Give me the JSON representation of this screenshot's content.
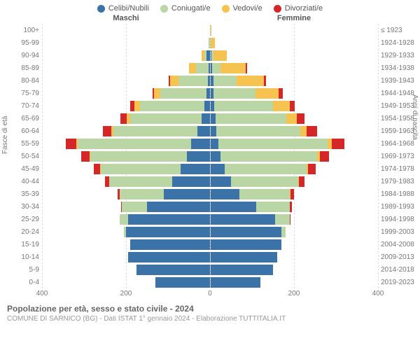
{
  "legend": [
    {
      "label": "Celibi/Nubili",
      "color": "#3b72a7"
    },
    {
      "label": "Coniugati/e",
      "color": "#bad6a4"
    },
    {
      "label": "Vedovi/e",
      "color": "#f6c350"
    },
    {
      "label": "Divorziati/e",
      "color": "#d62728"
    }
  ],
  "gender_labels": {
    "male": "Maschi",
    "female": "Femmine"
  },
  "axis_titles": {
    "left": "Fasce di età",
    "right": "Anni di nascita"
  },
  "x_axis": {
    "max": 400,
    "ticks": [
      400,
      200,
      0,
      200,
      400
    ]
  },
  "colors": {
    "celibi": "#3b72a7",
    "coniugati": "#bad6a4",
    "vedovi": "#f6c350",
    "divorziati": "#d62728",
    "grid": "#dddddd",
    "center": "#bbbbbb"
  },
  "rows": [
    {
      "age": "100+",
      "birth": "≤ 1923",
      "m": {
        "c": 0,
        "co": 0,
        "v": 0,
        "d": 0
      },
      "f": {
        "c": 0,
        "co": 0,
        "v": 2,
        "d": 0
      }
    },
    {
      "age": "95-99",
      "birth": "1924-1928",
      "m": {
        "c": 0,
        "co": 2,
        "v": 1,
        "d": 0
      },
      "f": {
        "c": 1,
        "co": 0,
        "v": 10,
        "d": 0
      }
    },
    {
      "age": "90-94",
      "birth": "1929-1933",
      "m": {
        "c": 7,
        "co": 6,
        "v": 7,
        "d": 0
      },
      "f": {
        "c": 3,
        "co": 4,
        "v": 32,
        "d": 0
      }
    },
    {
      "age": "85-89",
      "birth": "1934-1938",
      "m": {
        "c": 3,
        "co": 30,
        "v": 17,
        "d": 0
      },
      "f": {
        "c": 5,
        "co": 20,
        "v": 60,
        "d": 2
      }
    },
    {
      "age": "80-84",
      "birth": "1939-1943",
      "m": {
        "c": 5,
        "co": 70,
        "v": 20,
        "d": 3
      },
      "f": {
        "c": 7,
        "co": 55,
        "v": 65,
        "d": 5
      }
    },
    {
      "age": "75-79",
      "birth": "1944-1948",
      "m": {
        "c": 7,
        "co": 110,
        "v": 15,
        "d": 5
      },
      "f": {
        "c": 8,
        "co": 100,
        "v": 55,
        "d": 10
      }
    },
    {
      "age": "70-74",
      "birth": "1949-1953",
      "m": {
        "c": 12,
        "co": 155,
        "v": 12,
        "d": 10
      },
      "f": {
        "c": 10,
        "co": 140,
        "v": 40,
        "d": 12
      }
    },
    {
      "age": "65-69",
      "birth": "1954-1958",
      "m": {
        "c": 20,
        "co": 170,
        "v": 8,
        "d": 15
      },
      "f": {
        "c": 12,
        "co": 170,
        "v": 25,
        "d": 18
      }
    },
    {
      "age": "60-64",
      "birth": "1959-1963",
      "m": {
        "c": 30,
        "co": 200,
        "v": 5,
        "d": 20
      },
      "f": {
        "c": 15,
        "co": 200,
        "v": 15,
        "d": 25
      }
    },
    {
      "age": "55-59",
      "birth": "1964-1968",
      "m": {
        "c": 45,
        "co": 270,
        "v": 3,
        "d": 25
      },
      "f": {
        "c": 20,
        "co": 260,
        "v": 10,
        "d": 30
      }
    },
    {
      "age": "50-54",
      "birth": "1969-1973",
      "m": {
        "c": 55,
        "co": 230,
        "v": 2,
        "d": 20
      },
      "f": {
        "c": 25,
        "co": 230,
        "v": 6,
        "d": 22
      }
    },
    {
      "age": "45-49",
      "birth": "1974-1978",
      "m": {
        "c": 70,
        "co": 190,
        "v": 1,
        "d": 15
      },
      "f": {
        "c": 35,
        "co": 195,
        "v": 3,
        "d": 18
      }
    },
    {
      "age": "40-44",
      "birth": "1979-1983",
      "m": {
        "c": 90,
        "co": 150,
        "v": 0,
        "d": 10
      },
      "f": {
        "c": 50,
        "co": 160,
        "v": 2,
        "d": 12
      }
    },
    {
      "age": "35-39",
      "birth": "1984-1988",
      "m": {
        "c": 110,
        "co": 105,
        "v": 0,
        "d": 5
      },
      "f": {
        "c": 70,
        "co": 120,
        "v": 1,
        "d": 8
      }
    },
    {
      "age": "30-34",
      "birth": "1989-1993",
      "m": {
        "c": 150,
        "co": 60,
        "v": 0,
        "d": 2
      },
      "f": {
        "c": 110,
        "co": 80,
        "v": 0,
        "d": 5
      }
    },
    {
      "age": "25-29",
      "birth": "1994-1998",
      "m": {
        "c": 195,
        "co": 20,
        "v": 0,
        "d": 0
      },
      "f": {
        "c": 155,
        "co": 35,
        "v": 0,
        "d": 2
      }
    },
    {
      "age": "20-24",
      "birth": "1999-2003",
      "m": {
        "c": 200,
        "co": 5,
        "v": 0,
        "d": 0
      },
      "f": {
        "c": 170,
        "co": 10,
        "v": 0,
        "d": 0
      }
    },
    {
      "age": "15-19",
      "birth": "2004-2008",
      "m": {
        "c": 190,
        "co": 0,
        "v": 0,
        "d": 0
      },
      "f": {
        "c": 170,
        "co": 0,
        "v": 0,
        "d": 0
      }
    },
    {
      "age": "10-14",
      "birth": "2009-2013",
      "m": {
        "c": 195,
        "co": 0,
        "v": 0,
        "d": 0
      },
      "f": {
        "c": 160,
        "co": 0,
        "v": 0,
        "d": 0
      }
    },
    {
      "age": "5-9",
      "birth": "2014-2018",
      "m": {
        "c": 175,
        "co": 0,
        "v": 0,
        "d": 0
      },
      "f": {
        "c": 150,
        "co": 0,
        "v": 0,
        "d": 0
      }
    },
    {
      "age": "0-4",
      "birth": "2019-2023",
      "m": {
        "c": 130,
        "co": 0,
        "v": 0,
        "d": 0
      },
      "f": {
        "c": 120,
        "co": 0,
        "v": 0,
        "d": 0
      }
    }
  ],
  "footer": {
    "title": "Popolazione per età, sesso e stato civile - 2024",
    "sub": "COMUNE DI SARNICO (BG) - Dati ISTAT 1° gennaio 2024 - Elaborazione TUTTITALIA.IT"
  }
}
